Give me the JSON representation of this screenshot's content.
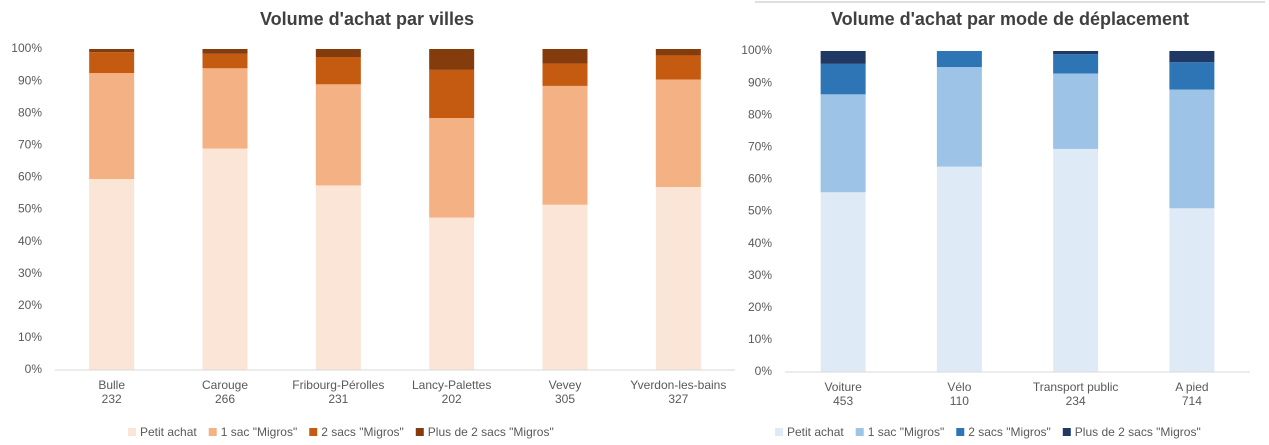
{
  "chart_data": [
    {
      "type": "stacked_bar",
      "title": "Volume d'achat par villes",
      "categories": [
        "Bulle",
        "Carouge",
        "Fribourg-Pérolles",
        "Lancy-Palettes",
        "Vevey",
        "Yverdon-les-bains"
      ],
      "sample_sizes": [
        232,
        266,
        231,
        202,
        305,
        327
      ],
      "series": [
        {
          "name": "Petit achat",
          "color": "#fbe5d6",
          "values": [
            59.5,
            69,
            57.5,
            47.5,
            51.5,
            57
          ]
        },
        {
          "name": "1 sac \"Migros\"",
          "color": "#f4b183",
          "values": [
            33,
            25,
            31.5,
            31,
            37,
            33.5
          ]
        },
        {
          "name": "2 sacs \"Migros\"",
          "color": "#c55a11",
          "values": [
            6.5,
            4.5,
            8.5,
            15,
            7,
            7.5
          ]
        },
        {
          "name": "Plus de 2 sacs \"Migros\"",
          "color": "#843c0c",
          "values": [
            1,
            1.5,
            2.5,
            6.5,
            4.5,
            2
          ]
        }
      ],
      "ylim": [
        0,
        100
      ],
      "yticks": [
        {
          "value": 0,
          "label": "0%"
        },
        {
          "value": 10,
          "label": "10%"
        },
        {
          "value": 20,
          "label": "20%"
        },
        {
          "value": 30,
          "label": "30%"
        },
        {
          "value": 40,
          "label": "40%"
        },
        {
          "value": 50,
          "label": "50%"
        },
        {
          "value": 60,
          "label": "60%"
        },
        {
          "value": 70,
          "label": "70%"
        },
        {
          "value": 80,
          "label": "80%"
        },
        {
          "value": 90,
          "label": "90%"
        },
        {
          "value": 100,
          "label": "100%"
        }
      ]
    },
    {
      "type": "stacked_bar",
      "title": "Volume d'achat par mode de déplacement",
      "categories": [
        "Voiture",
        "Vélo",
        "Transport public",
        "A pied"
      ],
      "sample_sizes": [
        453,
        110,
        234,
        714
      ],
      "series": [
        {
          "name": "Petit achat",
          "color": "#deebf7",
          "values": [
            56,
            64,
            69.5,
            51
          ]
        },
        {
          "name": "1 sac \"Migros\"",
          "color": "#9dc3e6",
          "values": [
            30.5,
            31,
            23.5,
            37
          ]
        },
        {
          "name": "2 sacs \"Migros\"",
          "color": "#2e75b6",
          "values": [
            9.5,
            5,
            6,
            8.5
          ]
        },
        {
          "name": "Plus de 2 sacs \"Migros\"",
          "color": "#203864",
          "values": [
            4,
            0,
            1,
            3.5
          ]
        }
      ],
      "ylim": [
        0,
        100
      ],
      "yticks": [
        {
          "value": 0,
          "label": "0%"
        },
        {
          "value": 10,
          "label": "10%"
        },
        {
          "value": 20,
          "label": "20%"
        },
        {
          "value": 30,
          "label": "30%"
        },
        {
          "value": 40,
          "label": "40%"
        },
        {
          "value": 50,
          "label": "50%"
        },
        {
          "value": 60,
          "label": "60%"
        },
        {
          "value": 70,
          "label": "70%"
        },
        {
          "value": 80,
          "label": "80%"
        },
        {
          "value": 90,
          "label": "90%"
        },
        {
          "value": 100,
          "label": "100%"
        }
      ]
    }
  ]
}
